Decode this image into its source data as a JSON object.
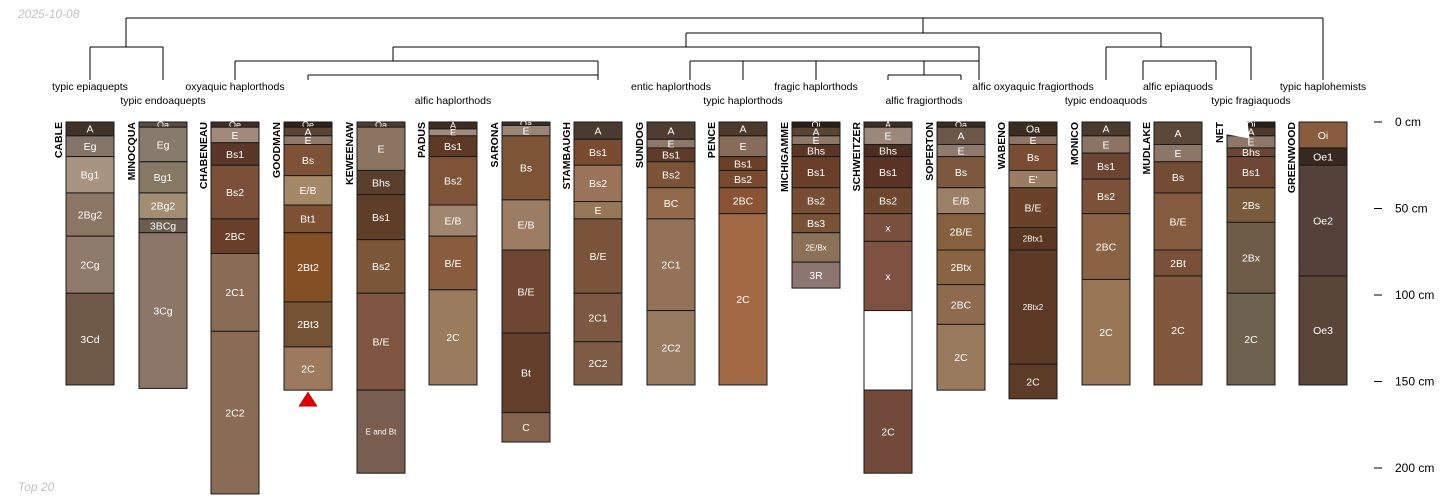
{
  "date": "2025-10-08",
  "footer": "Top 20",
  "dendrogram_color": "#000000",
  "taxa": [
    "typic epiaquepts",
    "typic endoaquepts",
    "oxyaquic haplorthods",
    "alfic haplorthods",
    "entic haplorthods",
    "typic haplorthods",
    "fragic haplorthods",
    "alfic fragiorthods",
    "alfic oxyaquic fragiorthods",
    "typic endoaquods",
    "alfic epiaquods",
    "typic fragiaquods",
    "typic haplohemists"
  ],
  "depth_axis": {
    "unit": "cm",
    "ticks": [
      0,
      50,
      100,
      150,
      200
    ],
    "tick_labels": [
      "0 cm",
      "50 cm",
      "100 cm",
      "150 cm",
      "200 cm"
    ]
  },
  "profiles": [
    {
      "name": "CABLE",
      "horizons": [
        {
          "name": "A",
          "top": 0,
          "bottom": 8,
          "color": "#3f3229"
        },
        {
          "name": "Eg",
          "top": 8,
          "bottom": 20,
          "color": "#857569"
        },
        {
          "name": "Bg1",
          "top": 20,
          "bottom": 41,
          "color": "#a79482"
        },
        {
          "name": "2Bg2",
          "top": 41,
          "bottom": 66,
          "color": "#8b7663"
        },
        {
          "name": "2Cg",
          "top": 66,
          "bottom": 99,
          "color": "#8e7b6c"
        },
        {
          "name": "3Cd",
          "top": 99,
          "bottom": 152,
          "color": "#6f5949"
        }
      ]
    },
    {
      "name": "MINOCQUA",
      "horizons": [
        {
          "name": "Oa",
          "top": 0,
          "bottom": 3,
          "color": "#5c4a3d"
        },
        {
          "name": "Eg",
          "top": 3,
          "bottom": 23,
          "color": "#887a6c"
        },
        {
          "name": "Bg1",
          "top": 23,
          "bottom": 41,
          "color": "#867963"
        },
        {
          "name": "2Bg2",
          "top": 41,
          "bottom": 56,
          "color": "#a28d73"
        },
        {
          "name": "3BCg",
          "top": 56,
          "bottom": 64,
          "color": "#6b5d52"
        },
        {
          "name": "3Cg",
          "top": 64,
          "bottom": 154,
          "color": "#8b7668"
        }
      ]
    },
    {
      "name": "CHABENEAU",
      "horizons": [
        {
          "name": "Oe",
          "top": 0,
          "bottom": 3,
          "color": "#3f2e24"
        },
        {
          "name": "E",
          "top": 3,
          "bottom": 12,
          "color": "#a18a7b"
        },
        {
          "name": "Bs1",
          "top": 12,
          "bottom": 25,
          "color": "#5a3729"
        },
        {
          "name": "Bs2",
          "top": 25,
          "bottom": 56,
          "color": "#7a5039"
        },
        {
          "name": "2BC",
          "top": 56,
          "bottom": 76,
          "color": "#6a3f2a"
        },
        {
          "name": "2C1",
          "top": 76,
          "bottom": 121,
          "color": "#8a6b55"
        },
        {
          "name": "2C2",
          "top": 121,
          "bottom": 215,
          "color": "#8a6c56"
        }
      ]
    },
    {
      "name": "GOODMAN",
      "horizons": [
        {
          "name": "Oe",
          "top": 0,
          "bottom": 3,
          "color": "#2e221a"
        },
        {
          "name": "A",
          "top": 3,
          "bottom": 8,
          "color": "#5a4536"
        },
        {
          "name": "E",
          "top": 8,
          "bottom": 13,
          "color": "#8f7a6c"
        },
        {
          "name": "Bs",
          "top": 13,
          "bottom": 31,
          "color": "#7d5236"
        },
        {
          "name": "E/B",
          "top": 31,
          "bottom": 48,
          "color": "#a48867"
        },
        {
          "name": "Bt1",
          "top": 48,
          "bottom": 64,
          "color": "#7e5133"
        },
        {
          "name": "2Bt2",
          "top": 64,
          "bottom": 104,
          "color": "#844f24"
        },
        {
          "name": "2Bt3",
          "top": 104,
          "bottom": 130,
          "color": "#755233"
        },
        {
          "name": "2C",
          "top": 130,
          "bottom": 155,
          "color": "#9d7a5d"
        }
      ]
    },
    {
      "name": "KEWEENAW",
      "horizons": [
        {
          "name": "Oa",
          "top": 0,
          "bottom": 3,
          "color": "#4f3c30"
        },
        {
          "name": "E",
          "top": 3,
          "bottom": 28,
          "color": "#8b7462"
        },
        {
          "name": "Bhs",
          "top": 28,
          "bottom": 42,
          "color": "#5b3f2e"
        },
        {
          "name": "Bs1",
          "top": 42,
          "bottom": 68,
          "color": "#5f3e28"
        },
        {
          "name": "Bs2",
          "top": 68,
          "bottom": 99,
          "color": "#7b5638"
        },
        {
          "name": "B/E",
          "top": 99,
          "bottom": 155,
          "color": "#7f5641"
        },
        {
          "name": "E and Bt",
          "top": 155,
          "bottom": 203,
          "color": "#785d51"
        }
      ]
    },
    {
      "name": "PADUS",
      "horizons": [
        {
          "name": "A",
          "top": 0,
          "bottom": 4,
          "color": "#3e2b22"
        },
        {
          "name": "E",
          "top": 4,
          "bottom": 8,
          "color": "#9f8a7c"
        },
        {
          "name": "Bs1",
          "top": 8,
          "bottom": 20,
          "color": "#5e3a26"
        },
        {
          "name": "Bs2",
          "top": 20,
          "bottom": 48,
          "color": "#7f5338"
        },
        {
          "name": "E/B",
          "top": 48,
          "bottom": 66,
          "color": "#a1866f"
        },
        {
          "name": "B/E",
          "top": 66,
          "bottom": 97,
          "color": "#8a5c3e"
        },
        {
          "name": "2C",
          "top": 97,
          "bottom": 152,
          "color": "#9a7b5d"
        }
      ]
    },
    {
      "name": "SARONA",
      "horizons": [
        {
          "name": "Oa",
          "top": 0,
          "bottom": 2,
          "color": "#3e2e24"
        },
        {
          "name": "E",
          "top": 2,
          "bottom": 8,
          "color": "#9a8577"
        },
        {
          "name": "Bs",
          "top": 8,
          "bottom": 45,
          "color": "#7d5536"
        },
        {
          "name": "E/B",
          "top": 45,
          "bottom": 74,
          "color": "#9c7c62"
        },
        {
          "name": "B/E",
          "top": 74,
          "bottom": 122,
          "color": "#6f4631"
        },
        {
          "name": "Bt",
          "top": 122,
          "bottom": 168,
          "color": "#633e2b"
        },
        {
          "name": "C",
          "top": 168,
          "bottom": 185,
          "color": "#85644f"
        }
      ]
    },
    {
      "name": "STAMBAUGH",
      "horizons": [
        {
          "name": "A",
          "top": 0,
          "bottom": 10,
          "color": "#4a3a2f"
        },
        {
          "name": "Bs1",
          "top": 10,
          "bottom": 25,
          "color": "#7a4b30"
        },
        {
          "name": "Bs2",
          "top": 25,
          "bottom": 46,
          "color": "#9a7358"
        },
        {
          "name": "E",
          "top": 46,
          "bottom": 56,
          "color": "#977856"
        },
        {
          "name": "B/E",
          "top": 56,
          "bottom": 99,
          "color": "#7b523a"
        },
        {
          "name": "2C1",
          "top": 99,
          "bottom": 127,
          "color": "#7c5842"
        },
        {
          "name": "2C2",
          "top": 127,
          "bottom": 152,
          "color": "#7e5b45"
        }
      ]
    },
    {
      "name": "SUNDOG",
      "horizons": [
        {
          "name": "A",
          "top": 0,
          "bottom": 10,
          "color": "#4e3d30"
        },
        {
          "name": "E",
          "top": 10,
          "bottom": 15,
          "color": "#8d7868"
        },
        {
          "name": "Bs1",
          "top": 15,
          "bottom": 23,
          "color": "#5f3b2a"
        },
        {
          "name": "Bs2",
          "top": 23,
          "bottom": 38,
          "color": "#7d5338"
        },
        {
          "name": "BC",
          "top": 38,
          "bottom": 56,
          "color": "#93694b"
        },
        {
          "name": "2C1",
          "top": 56,
          "bottom": 109,
          "color": "#937259"
        },
        {
          "name": "2C2",
          "top": 109,
          "bottom": 152,
          "color": "#977a5f"
        }
      ]
    },
    {
      "name": "PENCE",
      "horizons": [
        {
          "name": "A",
          "top": 0,
          "bottom": 8,
          "color": "#4e3a2b"
        },
        {
          "name": "E",
          "top": 8,
          "bottom": 20,
          "color": "#866c59"
        },
        {
          "name": "Bs1",
          "top": 20,
          "bottom": 28,
          "color": "#6c3f27"
        },
        {
          "name": "Bs2",
          "top": 28,
          "bottom": 38,
          "color": "#7a4a2d"
        },
        {
          "name": "2BC",
          "top": 38,
          "bottom": 53,
          "color": "#8a5434"
        },
        {
          "name": "2C",
          "top": 53,
          "bottom": 152,
          "color": "#a16a45"
        }
      ]
    },
    {
      "name": "MICHIGAMME",
      "horizons": [
        {
          "name": "Oi",
          "top": 0,
          "bottom": 3,
          "color": "#2a1f17"
        },
        {
          "name": "A",
          "top": 3,
          "bottom": 8,
          "color": "#5a4434"
        },
        {
          "name": "E",
          "top": 8,
          "bottom": 13,
          "color": "#8e7868"
        },
        {
          "name": "Bhs",
          "top": 13,
          "bottom": 20,
          "color": "#5b3525"
        },
        {
          "name": "Bs1",
          "top": 20,
          "bottom": 38,
          "color": "#6a3f2a"
        },
        {
          "name": "Bs2",
          "top": 38,
          "bottom": 53,
          "color": "#774d34"
        },
        {
          "name": "Bs3",
          "top": 53,
          "bottom": 64,
          "color": "#7a5238"
        },
        {
          "name": "2E/Bx",
          "top": 64,
          "bottom": 81,
          "color": "#8a7157"
        },
        {
          "name": "3R",
          "top": 81,
          "bottom": 96,
          "color": "#8e7670"
        }
      ]
    },
    {
      "name": "SCHWEITZER",
      "horizons": [
        {
          "name": "A",
          "top": 0,
          "bottom": 3,
          "color": "#3e2e24"
        },
        {
          "name": "E",
          "top": 3,
          "bottom": 13,
          "color": "#9c877b"
        },
        {
          "name": "Bhs",
          "top": 13,
          "bottom": 20,
          "color": "#4c2e21"
        },
        {
          "name": "Bs1",
          "top": 20,
          "bottom": 38,
          "color": "#5a3324"
        },
        {
          "name": "Bs2",
          "top": 38,
          "bottom": 53,
          "color": "#6e452d"
        },
        {
          "name": "x",
          "top": 53,
          "bottom": 69,
          "color": "#7a4f3b"
        },
        {
          "name": "x",
          "top": 69,
          "bottom": 109,
          "color": "#7e5141"
        },
        {
          "name": "",
          "top": 109,
          "bottom": 155,
          "color": "#ffffff"
        },
        {
          "name": "2C",
          "top": 155,
          "bottom": 203,
          "color": "#73493b"
        }
      ]
    },
    {
      "name": "SOPERTON",
      "horizons": [
        {
          "name": "Oa",
          "top": 0,
          "bottom": 3,
          "color": "#3a2c22"
        },
        {
          "name": "A",
          "top": 3,
          "bottom": 13,
          "color": "#6b5848"
        },
        {
          "name": "E",
          "top": 13,
          "bottom": 20,
          "color": "#8f7b6e"
        },
        {
          "name": "Bs",
          "top": 20,
          "bottom": 38,
          "color": "#7d573e"
        },
        {
          "name": "E/B",
          "top": 38,
          "bottom": 53,
          "color": "#9b7f67"
        },
        {
          "name": "2B/E",
          "top": 53,
          "bottom": 74,
          "color": "#86603f"
        },
        {
          "name": "2Btx",
          "top": 74,
          "bottom": 94,
          "color": "#8a6342"
        },
        {
          "name": "2BC",
          "top": 94,
          "bottom": 117,
          "color": "#8e6a4f"
        },
        {
          "name": "2C",
          "top": 117,
          "bottom": 155,
          "color": "#9a7a5c"
        }
      ]
    },
    {
      "name": "WABENO",
      "horizons": [
        {
          "name": "Oa",
          "top": 0,
          "bottom": 8,
          "color": "#3b2c20"
        },
        {
          "name": "E",
          "top": 8,
          "bottom": 13,
          "color": "#8e7564"
        },
        {
          "name": "Bs",
          "top": 13,
          "bottom": 28,
          "color": "#7a4d32"
        },
        {
          "name": "E'",
          "top": 28,
          "bottom": 38,
          "color": "#9a7c63"
        },
        {
          "name": "B/E",
          "top": 38,
          "bottom": 61,
          "color": "#6a4228"
        },
        {
          "name": "2Btx1",
          "top": 61,
          "bottom": 74,
          "color": "#5a3723"
        },
        {
          "name": "2Btx2",
          "top": 74,
          "bottom": 140,
          "color": "#5c3a25"
        },
        {
          "name": "2C",
          "top": 140,
          "bottom": 160,
          "color": "#5c3b27"
        }
      ]
    },
    {
      "name": "MONICO",
      "horizons": [
        {
          "name": "A",
          "top": 0,
          "bottom": 8,
          "color": "#4a3a2d"
        },
        {
          "name": "E",
          "top": 8,
          "bottom": 18,
          "color": "#8b7464"
        },
        {
          "name": "Bs1",
          "top": 18,
          "bottom": 33,
          "color": "#6c4432"
        },
        {
          "name": "Bs2",
          "top": 33,
          "bottom": 53,
          "color": "#7b5238"
        },
        {
          "name": "2BC",
          "top": 53,
          "bottom": 91,
          "color": "#8a6244"
        },
        {
          "name": "2C",
          "top": 91,
          "bottom": 152,
          "color": "#987656"
        }
      ]
    },
    {
      "name": "MUDLAKE",
      "horizons": [
        {
          "name": "A",
          "top": 0,
          "bottom": 13,
          "color": "#5b4838"
        },
        {
          "name": "E",
          "top": 13,
          "bottom": 23,
          "color": "#8c7667"
        },
        {
          "name": "Bs",
          "top": 23,
          "bottom": 41,
          "color": "#744c33"
        },
        {
          "name": "B/E",
          "top": 41,
          "bottom": 74,
          "color": "#845b3f"
        },
        {
          "name": "2Bt",
          "top": 74,
          "bottom": 89,
          "color": "#7b5038"
        },
        {
          "name": "2C",
          "top": 89,
          "bottom": 152,
          "color": "#81583e"
        }
      ]
    },
    {
      "name": "NET",
      "horizons": [
        {
          "name": "Oi",
          "top": 0,
          "bottom": 3,
          "color": "#2a1f17"
        },
        {
          "name": "A",
          "top": 3,
          "bottom": 8,
          "color": "#4d3a2c"
        },
        {
          "name": "E",
          "top": 8,
          "bottom": 15,
          "color": "#8c7768"
        },
        {
          "name": "Bhs",
          "top": 15,
          "bottom": 20,
          "color": "#6a4634"
        },
        {
          "name": "Bs1",
          "top": 20,
          "bottom": 38,
          "color": "#6e4834"
        },
        {
          "name": "2Bs",
          "top": 38,
          "bottom": 58,
          "color": "#7a5a3d"
        },
        {
          "name": "2Bx",
          "top": 58,
          "bottom": 99,
          "color": "#6e5b48"
        },
        {
          "name": "2C",
          "top": 99,
          "bottom": 152,
          "color": "#6f6150"
        }
      ]
    },
    {
      "name": "GREENWOOD",
      "horizons": [
        {
          "name": "Oi",
          "top": 0,
          "bottom": 15,
          "color": "#8a5c3e"
        },
        {
          "name": "Oe1",
          "top": 15,
          "bottom": 25,
          "color": "#362a20"
        },
        {
          "name": "Oe2",
          "top": 25,
          "bottom": 89,
          "color": "#54413a"
        },
        {
          "name": "Oe3",
          "top": 89,
          "bottom": 152,
          "color": "#5a4539"
        }
      ]
    }
  ]
}
